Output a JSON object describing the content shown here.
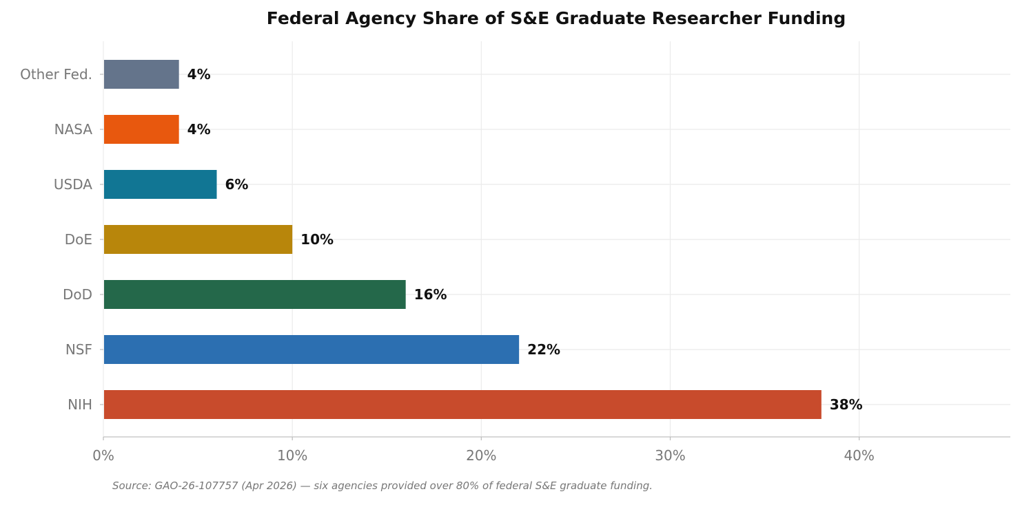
{
  "chart_data": {
    "type": "bar",
    "orientation": "horizontal",
    "title": "Federal Agency Share of S&E Graduate Researcher Funding",
    "xlabel": "",
    "ylabel": "",
    "categories": [
      "NIH",
      "NSF",
      "DoD",
      "DoE",
      "USDA",
      "NASA",
      "Other Fed."
    ],
    "values": [
      38,
      22,
      16,
      10,
      6,
      4,
      4
    ],
    "value_labels": [
      "38%",
      "22%",
      "16%",
      "10%",
      "6%",
      "4%",
      "4%"
    ],
    "colors": [
      "#c84b2c",
      "#2c6fb1",
      "#24684a",
      "#b8860b",
      "#117694",
      "#e8580e",
      "#64748b"
    ],
    "xlim": [
      0,
      48
    ],
    "xticks": [
      0,
      10,
      20,
      30,
      40
    ],
    "xtick_labels": [
      "0%",
      "10%",
      "20%",
      "30%",
      "40%"
    ],
    "grid": true,
    "legend": "none",
    "source_note": "Source: GAO-26-107757 (Apr 2026) — six agencies provided over 80% of federal S&E graduate funding."
  }
}
